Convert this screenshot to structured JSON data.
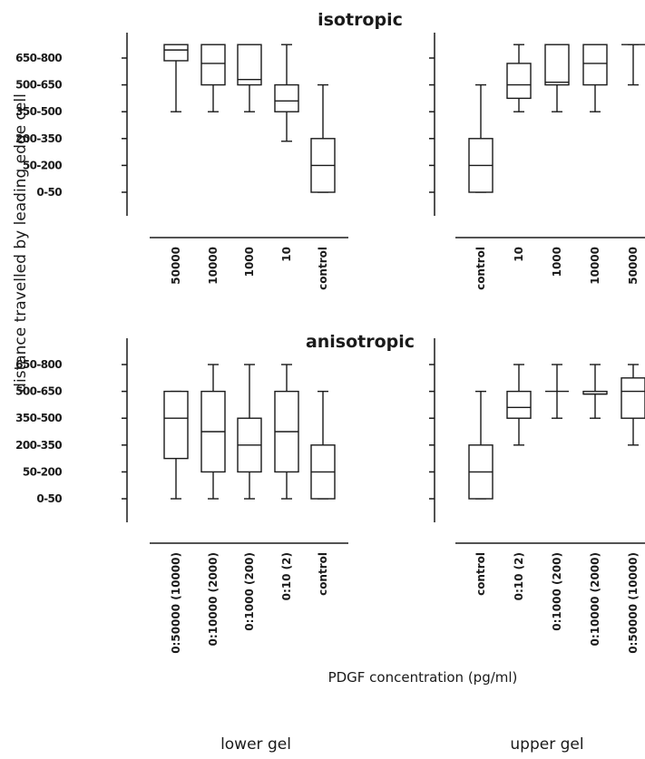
{
  "figure": {
    "y_axis_label": "distance travelled by leading edge cell",
    "x_axis_label": "PDGF concentration (pg/ml)",
    "footer_left": "lower gel",
    "footer_right": "upper gel"
  },
  "chart_data": [
    {
      "type": "box",
      "title": "isotropic",
      "ylabel": "distance travelled by leading edge cell",
      "y_categories": [
        "0-50",
        "50-200",
        "200-350",
        "350-500",
        "500-650",
        "650-800"
      ],
      "y_scale": "ordinal bins, index 0 = 0-50 ... index 5 = 650-800",
      "panels": [
        {
          "name": "lower gel",
          "categories": [
            "50000",
            "10000",
            "1000",
            "10",
            "control"
          ],
          "boxes": [
            {
              "min": 3.0,
              "q1": 4.9,
              "median": 5.3,
              "q3": 5.5,
              "max": 5.5
            },
            {
              "min": 3.0,
              "q1": 4.0,
              "median": 4.8,
              "q3": 5.5,
              "max": 5.5
            },
            {
              "min": 3.0,
              "q1": 4.0,
              "median": 4.2,
              "q3": 5.5,
              "max": 5.5
            },
            {
              "min": 1.9,
              "q1": 3.0,
              "median": 3.4,
              "q3": 4.0,
              "max": 5.5
            },
            {
              "min": 0.0,
              "q1": 0.0,
              "median": 1.0,
              "q3": 2.0,
              "max": 4.0
            }
          ]
        },
        {
          "name": "upper gel",
          "categories": [
            "control",
            "10",
            "1000",
            "10000",
            "50000"
          ],
          "boxes": [
            {
              "min": 0.0,
              "q1": 0.0,
              "median": 1.0,
              "q3": 2.0,
              "max": 4.0
            },
            {
              "min": 3.0,
              "q1": 3.5,
              "median": 4.0,
              "q3": 4.8,
              "max": 5.5
            },
            {
              "min": 3.0,
              "q1": 4.0,
              "median": 4.1,
              "q3": 5.5,
              "max": 5.5
            },
            {
              "min": 3.0,
              "q1": 4.0,
              "median": 4.8,
              "q3": 5.5,
              "max": 5.5
            },
            {
              "min": 4.0,
              "q1": 5.5,
              "median": 5.5,
              "q3": 5.5,
              "max": 5.5
            }
          ]
        }
      ]
    },
    {
      "type": "box",
      "title": "anisotropic",
      "ylabel": "distance travelled by leading edge cell",
      "y_categories": [
        "0-50",
        "50-200",
        "200-350",
        "350-500",
        "500-650",
        "650-800"
      ],
      "y_scale": "ordinal bins, index 0 = 0-50 ... index 5 = 650-800",
      "panels": [
        {
          "name": "lower gel",
          "categories": [
            "0:50000 (10000)",
            "0:10000 (2000)",
            "0:1000 (200)",
            "0:10 (2)",
            "control"
          ],
          "boxes": [
            {
              "min": 0.0,
              "q1": 1.5,
              "median": 3.0,
              "q3": 4.0,
              "max": 4.0
            },
            {
              "min": 0.0,
              "q1": 1.0,
              "median": 2.5,
              "q3": 4.0,
              "max": 5.0
            },
            {
              "min": 0.0,
              "q1": 1.0,
              "median": 2.0,
              "q3": 3.0,
              "max": 5.0
            },
            {
              "min": 0.0,
              "q1": 1.0,
              "median": 2.5,
              "q3": 4.0,
              "max": 5.0
            },
            {
              "min": 0.0,
              "q1": 0.0,
              "median": 1.0,
              "q3": 2.0,
              "max": 4.0
            }
          ]
        },
        {
          "name": "upper gel",
          "categories": [
            "control",
            "0:10 (2)",
            "0:1000 (200)",
            "0:10000 (2000)",
            "0:50000 (10000)"
          ],
          "boxes": [
            {
              "min": 0.0,
              "q1": 0.0,
              "median": 1.0,
              "q3": 2.0,
              "max": 4.0
            },
            {
              "min": 2.0,
              "q1": 3.0,
              "median": 3.4,
              "q3": 4.0,
              "max": 5.0
            },
            {
              "min": 3.0,
              "q1": 4.0,
              "median": 4.0,
              "q3": 4.0,
              "max": 5.0
            },
            {
              "min": 3.0,
              "q1": 3.9,
              "median": 3.9,
              "q3": 4.0,
              "max": 5.0
            },
            {
              "min": 2.0,
              "q1": 3.0,
              "median": 4.0,
              "q3": 4.5,
              "max": 5.0
            }
          ]
        }
      ]
    }
  ]
}
